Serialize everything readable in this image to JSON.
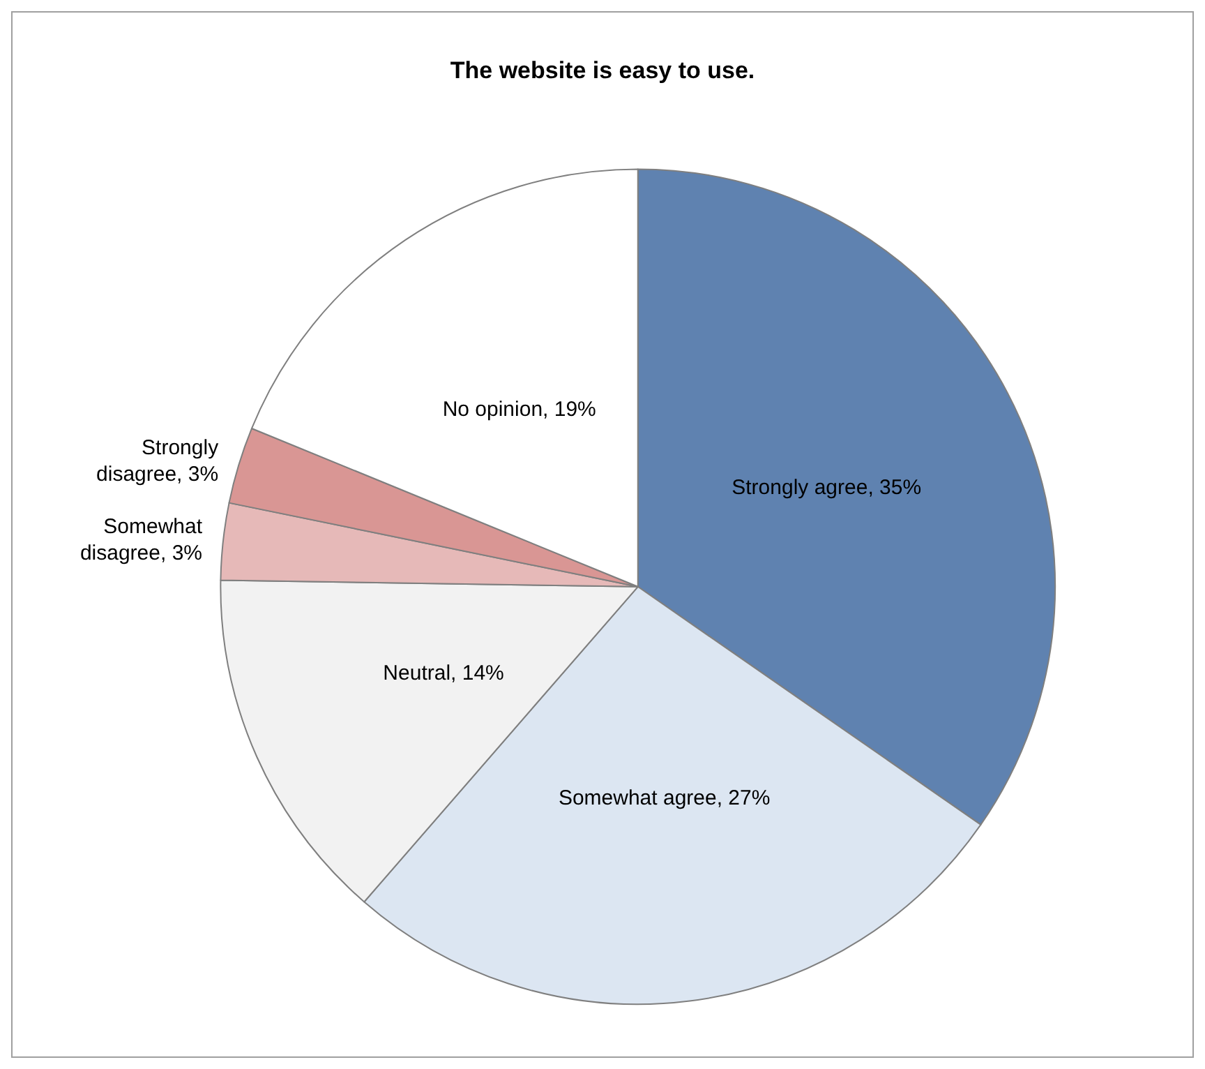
{
  "chart_data": {
    "type": "pie",
    "title": "The website is easy to use.",
    "categories": [
      "Strongly agree",
      "Somewhat agree",
      "Neutral",
      "Somewhat disagree",
      "Strongly disagree",
      "No opinion"
    ],
    "values": [
      35,
      27,
      14,
      3,
      3,
      19
    ],
    "value_labels": [
      "35%",
      "27%",
      "14%",
      "3%",
      "3%",
      "19%"
    ],
    "colors": [
      "#5f82b0",
      "#dce6f2",
      "#f2f2f2",
      "#e6b9b8",
      "#d99694",
      "#ffffff"
    ],
    "legend": false
  }
}
